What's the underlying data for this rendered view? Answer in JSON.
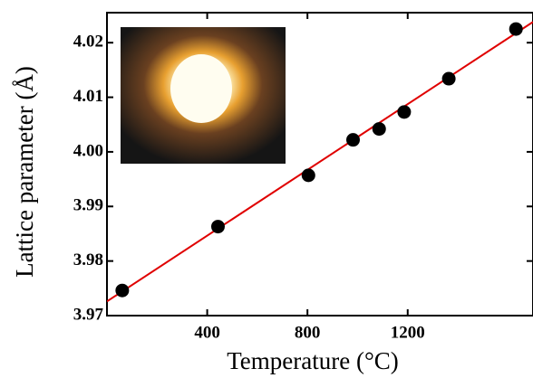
{
  "chart_data": {
    "type": "scatter",
    "x_label": "Temperature (°C)",
    "y_label": "Lattice parameter (Å)",
    "xlim": [
      0,
      1700
    ],
    "ylim": [
      3.97,
      4.0255
    ],
    "xticks": [
      400,
      800,
      1200
    ],
    "yticks": [
      {
        "value": 3.97,
        "label": "3.97"
      },
      {
        "value": 3.98,
        "label": "3.98"
      },
      {
        "value": 3.99,
        "label": "3.99"
      },
      {
        "value": 4.0,
        "label": "4.00"
      },
      {
        "value": 4.01,
        "label": "4.01"
      },
      {
        "value": 4.02,
        "label": "4.02"
      }
    ],
    "series": [
      {
        "color": "#000000",
        "x": [
          61,
          443,
          804,
          982,
          1086,
          1186,
          1364,
          1632
        ],
        "values": [
          3.9746,
          3.9863,
          3.9957,
          4.0022,
          4.0042,
          4.0073,
          4.0134,
          4.0225
        ]
      },
      {
        "type": "line",
        "color": "#e00000",
        "x": [
          0,
          1700
        ],
        "values": [
          3.9726,
          4.0238
        ]
      }
    ]
  }
}
